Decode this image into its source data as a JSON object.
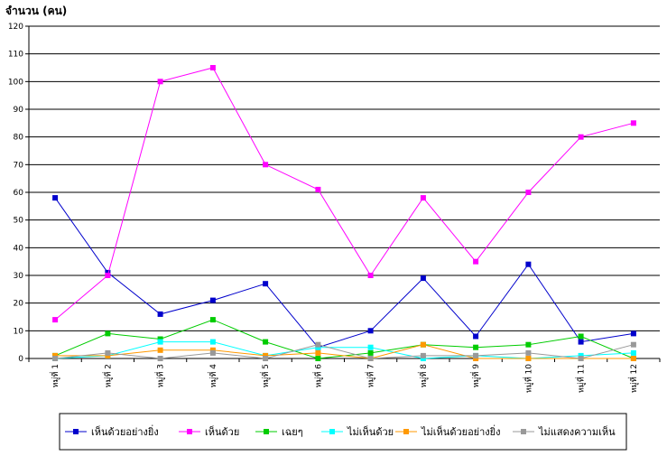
{
  "chart_data": {
    "type": "line",
    "title": "",
    "ylabel": "จำนวน (คน)",
    "xlabel": "",
    "ylim": [
      0,
      120
    ],
    "ytick_step": 10,
    "grid": "horizontal",
    "legend_position": "bottom",
    "categories": [
      "หมู่ที่ 1",
      "หมู่ที่ 2",
      "หมู่ที่ 3",
      "หมู่ที่ 4",
      "หมู่ที่ 5",
      "หมู่ที่ 6",
      "หมู่ที่ 7",
      "หมู่ที่ 8",
      "หมู่ที่ 9",
      "หมู่ที่ 10",
      "หมู่ที่ 11",
      "หมู่ที่ 12"
    ],
    "series": [
      {
        "name": "เห็นด้วยอย่างยิ่ง",
        "color": "#0000cc",
        "values": [
          58,
          31,
          16,
          21,
          27,
          4,
          10,
          29,
          8,
          34,
          6,
          9
        ]
      },
      {
        "name": "เห็นด้วย",
        "color": "#ff00ff",
        "values": [
          14,
          30,
          100,
          105,
          70,
          61,
          30,
          58,
          35,
          60,
          80,
          85
        ]
      },
      {
        "name": "เฉยๆ",
        "color": "#00cc00",
        "values": [
          1,
          9,
          7,
          14,
          6,
          0,
          2,
          5,
          4,
          5,
          8,
          0
        ]
      },
      {
        "name": "ไม่เห็นด้วย",
        "color": "#00ffff",
        "values": [
          0,
          1,
          6,
          6,
          1,
          4,
          4,
          0,
          1,
          0,
          1,
          2
        ]
      },
      {
        "name": "ไม่เห็นด้วยอย่างยิ่ง",
        "color": "#ff9900",
        "values": [
          1,
          1,
          3,
          3,
          1,
          2,
          0,
          5,
          0,
          0,
          0,
          0
        ]
      },
      {
        "name": "ไม่แสดงความเห็น",
        "color": "#999999",
        "values": [
          0,
          2,
          0,
          2,
          0,
          5,
          0,
          1,
          1,
          2,
          0,
          5
        ]
      }
    ]
  }
}
